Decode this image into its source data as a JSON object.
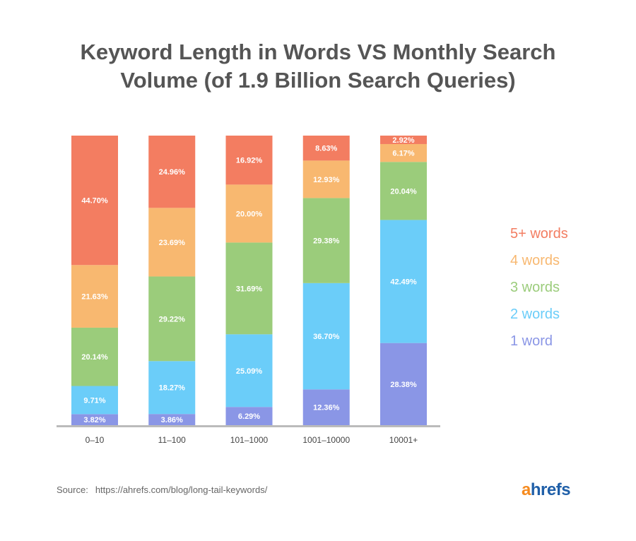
{
  "chart_data": {
    "type": "bar",
    "stacked": true,
    "title": "Keyword Length in Words VS Monthly Search Volume (of 1.9 Billion Search Queries)",
    "title_lines": [
      "Keyword Length in Words VS Monthly Search",
      "Volume (of 1.9 Billion Search Queries)"
    ],
    "categories": [
      "0–10",
      "11–100",
      "101–1000",
      "1001–10000",
      "10001+"
    ],
    "series": [
      {
        "name": "1 word",
        "color": "#8A96E6",
        "values": [
          3.82,
          3.86,
          6.29,
          12.36,
          28.38
        ],
        "labels": [
          "3.82%",
          "3.86%",
          "6.29%",
          "12.36%",
          "28.38%"
        ]
      },
      {
        "name": "2 words",
        "color": "#6BCDF9",
        "values": [
          9.71,
          18.27,
          25.09,
          36.7,
          42.49
        ],
        "labels": [
          "9.71%",
          "18.27%",
          "25.09%",
          "36.70%",
          "42.49%"
        ]
      },
      {
        "name": "3 words",
        "color": "#9BCC7B",
        "values": [
          20.14,
          29.22,
          31.69,
          29.38,
          20.04
        ],
        "labels": [
          "20.14%",
          "29.22%",
          "31.69%",
          "29.38%",
          "20.04%"
        ]
      },
      {
        "name": "4 words",
        "color": "#F8B870",
        "values": [
          21.63,
          23.69,
          20.0,
          12.93,
          6.17
        ],
        "labels": [
          "21.63%",
          "23.69%",
          "20.00%",
          "12.93%",
          "6.17%"
        ]
      },
      {
        "name": "5+ words",
        "color": "#F37D61",
        "values": [
          44.7,
          24.96,
          16.92,
          8.63,
          2.92
        ],
        "labels": [
          "44.70%",
          "24.96%",
          "16.92%",
          "8.63%",
          "2.92%"
        ]
      }
    ],
    "legend_order": [
      "5+ words",
      "4 words",
      "3 words",
      "2 words",
      "1 word"
    ],
    "legend_placement": "right",
    "ylim": [
      0,
      100
    ],
    "grid": false
  },
  "footer": {
    "source_label": "Source:",
    "source_url": "https://ahrefs.com/blog/long-tail-keywords/",
    "logo": "ahrefs"
  },
  "colors": {
    "title": "#555555",
    "axis": "#BBBBBB",
    "logo_a": "#F68B1F",
    "logo_rest": "#1F5FA8"
  }
}
